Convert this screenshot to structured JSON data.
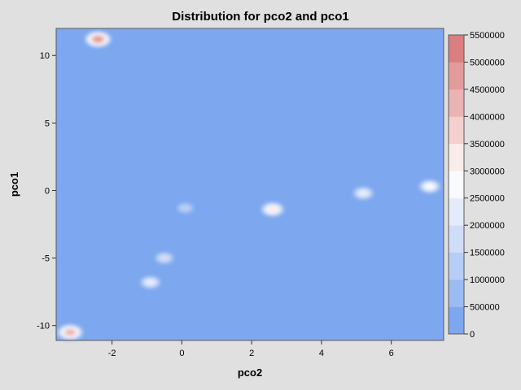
{
  "chart_data": {
    "type": "heatmap",
    "title": "Distribution for pco2 and pco1",
    "xlabel": "pco2",
    "ylabel": "pco1",
    "xlim": [
      -3.6,
      7.5
    ],
    "ylim": [
      -11.1,
      12.0
    ],
    "xticks": [
      "-2",
      "0",
      "2",
      "4",
      "6"
    ],
    "yticks": [
      "-10",
      "-5",
      "0",
      "5",
      "10"
    ],
    "colorbar": {
      "min": 0,
      "max": 5500000,
      "ticks": [
        "0",
        "500000",
        "1000000",
        "1500000",
        "2000000",
        "2500000",
        "3000000",
        "3500000",
        "4000000",
        "4500000",
        "5000000",
        "5500000"
      ],
      "colors": [
        "#7da7ee",
        "#9abcf2",
        "#b6cef6",
        "#cfddf9",
        "#e4ecfb",
        "#f9fafe",
        "#fbecec",
        "#f4cfcf",
        "#ebb3b3",
        "#e29b9b",
        "#d97f7f"
      ]
    },
    "density_peaks": [
      {
        "x": -2.4,
        "y": 11.2,
        "value": 4600000
      },
      {
        "x": -3.2,
        "y": -10.5,
        "value": 4300000
      },
      {
        "x": 2.6,
        "y": -1.4,
        "value": 3200000
      },
      {
        "x": 7.1,
        "y": 0.3,
        "value": 2600000
      },
      {
        "x": 5.2,
        "y": -0.2,
        "value": 2300000
      },
      {
        "x": -0.9,
        "y": -6.8,
        "value": 2200000
      },
      {
        "x": -0.5,
        "y": -5.0,
        "value": 1800000
      },
      {
        "x": 0.1,
        "y": -1.3,
        "value": 1200000
      }
    ],
    "grid": false
  }
}
